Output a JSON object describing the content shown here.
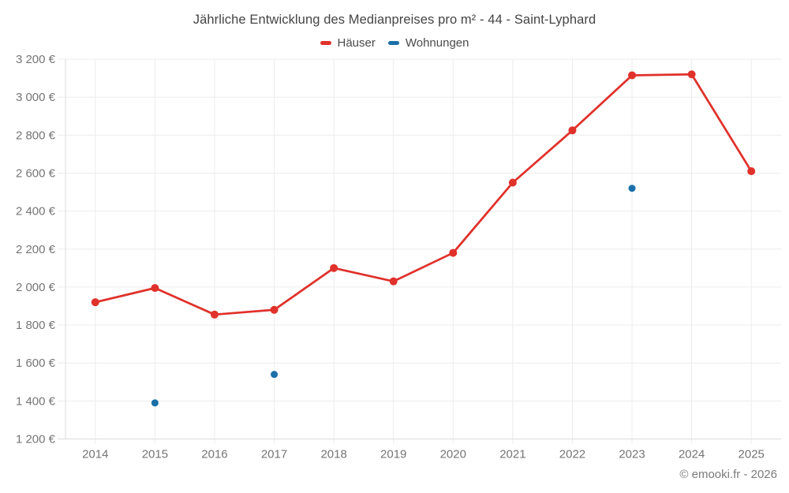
{
  "title": "Jährliche Entwicklung des Medianpreises pro m² - 44 - Saint-Lyphard",
  "footer_credit": "© emooki.fr - 2026",
  "legend": {
    "items": [
      {
        "label": "Häuser"
      },
      {
        "label": "Wohnungen"
      }
    ]
  },
  "colors": {
    "hauser": "#e0312b",
    "wohnungen": "#1a6fa9",
    "grid": "#ececec",
    "axis": "#dcdcdc",
    "tick_label": "#757575",
    "title_text": "#444444"
  },
  "chart_data": {
    "type": "line",
    "title": "Jährliche Entwicklung des Medianpreises pro m² - 44 - Saint-Lyphard",
    "xlabel": "",
    "ylabel": "",
    "categories": [
      "2014",
      "2015",
      "2016",
      "2017",
      "2018",
      "2019",
      "2020",
      "2021",
      "2022",
      "2023",
      "2024",
      "2025"
    ],
    "series": [
      {
        "name": "Häuser",
        "color": "#e0312b",
        "style": "line+markers",
        "values": [
          1920,
          1995,
          1855,
          1880,
          2100,
          2030,
          2180,
          2550,
          2825,
          3115,
          3120,
          2610
        ]
      },
      {
        "name": "Wohnungen",
        "color": "#1a6fa9",
        "style": "markers",
        "values": [
          null,
          1390,
          null,
          1540,
          null,
          null,
          null,
          null,
          null,
          2520,
          null,
          null
        ]
      }
    ],
    "ylim": [
      1200,
      3200
    ],
    "y_ticks": [
      1200,
      1400,
      1600,
      1800,
      2000,
      2200,
      2400,
      2600,
      2800,
      3000,
      3200
    ],
    "y_tick_labels": [
      "1 200 €",
      "1 400 €",
      "1 600 €",
      "1 800 €",
      "2 000 €",
      "2 200 €",
      "2 400 €",
      "2 600 €",
      "2 800 €",
      "3 000 €",
      "3 200 €"
    ],
    "grid": true,
    "legend_position": "top"
  }
}
